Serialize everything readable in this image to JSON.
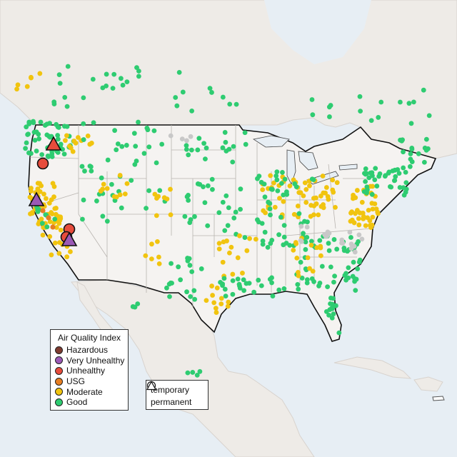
{
  "legend": {
    "title": "Air Quality Index",
    "categories": [
      {
        "label": "Hazardous",
        "color": "#7e3b2f"
      },
      {
        "label": "Very Unhealthy",
        "color": "#9b59b6"
      },
      {
        "label": "Unhealthy",
        "color": "#e74c3c"
      },
      {
        "label": "USG",
        "color": "#e67e22"
      },
      {
        "label": "Moderate",
        "color": "#f1c40f"
      },
      {
        "label": "Good",
        "color": "#2ecc71"
      }
    ],
    "types": [
      {
        "label": "temporary",
        "shape": "circle-icon"
      },
      {
        "label": "permanent",
        "shape": "triangle-icon"
      }
    ]
  },
  "colors": {
    "water": "#e7eef4",
    "land": "#f1eeea",
    "usa": "#f5f3f1",
    "no_data": "#c8c8c8"
  }
}
